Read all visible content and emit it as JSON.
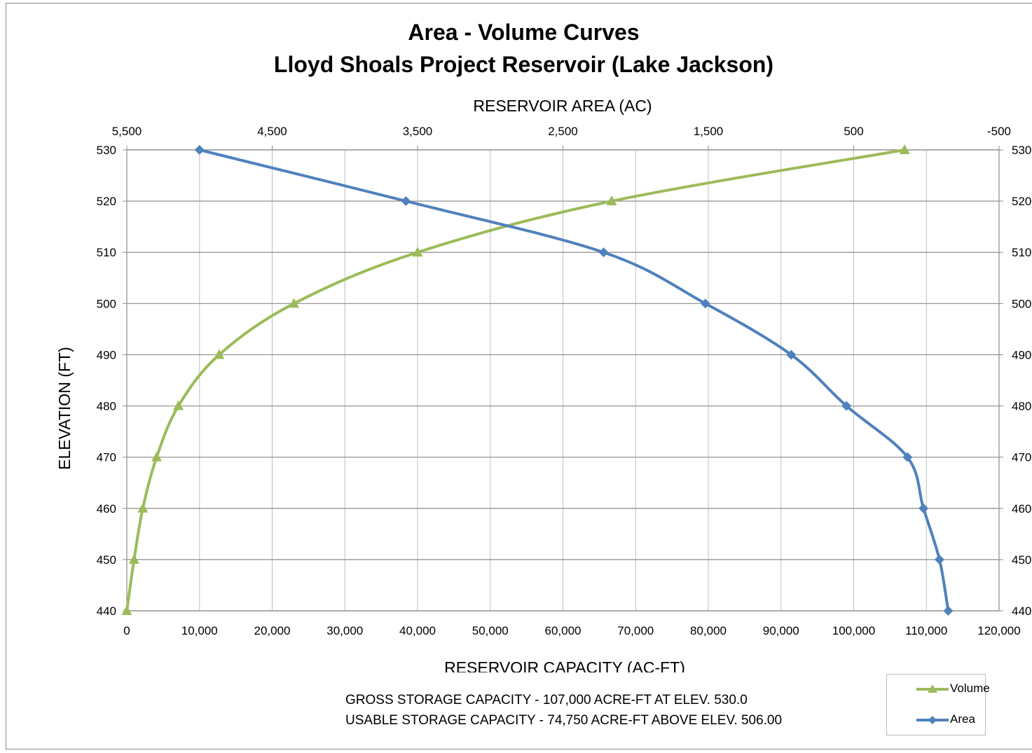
{
  "chart_data": {
    "type": "line",
    "title": "Area - Volume Curves",
    "subtitle": "Lloyd Shoals Project Reservoir (Lake Jackson)",
    "xlabel": "RESERVOIR CAPACITY (AC-FT)",
    "x2label": "RESERVOIR AREA (AC)",
    "ylabel": "ELEVATION (FT)",
    "xlim": [
      0,
      120000
    ],
    "x2lim": [
      5500,
      -500
    ],
    "ylim": [
      440,
      530
    ],
    "x_ticks": [
      0,
      10000,
      20000,
      30000,
      40000,
      50000,
      60000,
      70000,
      80000,
      90000,
      100000,
      110000,
      120000
    ],
    "x_tick_labels": [
      "0",
      "10,000",
      "20,000",
      "30,000",
      "40,000",
      "50,000",
      "60,000",
      "70,000",
      "80,000",
      "90,000",
      "100,000",
      "110,000",
      "120,000"
    ],
    "x2_ticks": [
      5500,
      4500,
      3500,
      2500,
      1500,
      500,
      -500
    ],
    "x2_tick_labels": [
      "5,500",
      "4,500",
      "3,500",
      "2,500",
      "1,500",
      "500",
      "-500"
    ],
    "y_ticks": [
      440,
      450,
      460,
      470,
      480,
      490,
      500,
      510,
      520,
      530
    ],
    "y_tick_labels": [
      "440",
      "450",
      "460",
      "470",
      "480",
      "490",
      "500",
      "510",
      "520",
      "530"
    ],
    "y2_tick_labels": [
      "440",
      "450",
      "460",
      "470",
      "480",
      "490",
      "500",
      "510",
      "520",
      "530"
    ],
    "grid": true,
    "legend_position": "bottom-right",
    "series": [
      {
        "name": "Volume",
        "axis": "bottom",
        "color": "#9bbb59",
        "marker": "triangle",
        "points": [
          [
            0,
            440
          ],
          [
            1000,
            450
          ],
          [
            2200,
            460
          ],
          [
            4100,
            470
          ],
          [
            7100,
            480
          ],
          [
            12700,
            490
          ],
          [
            23000,
            500
          ],
          [
            40000,
            510
          ],
          [
            66700,
            520
          ],
          [
            107000,
            530
          ]
        ]
      },
      {
        "name": "Area",
        "axis": "top",
        "color": "#4f81bd",
        "marker": "diamond",
        "points": [
          [
            -150,
            440
          ],
          [
            -90,
            450
          ],
          [
            20,
            460
          ],
          [
            130,
            470
          ],
          [
            550,
            480
          ],
          [
            930,
            490
          ],
          [
            1520,
            500
          ],
          [
            2220,
            510
          ],
          [
            3580,
            520
          ],
          [
            5000,
            530
          ]
        ]
      }
    ]
  },
  "notes": [
    "GROSS STORAGE CAPACITY - 107,000 ACRE-FT AT ELEV. 530.0",
    "USABLE STORAGE CAPACITY - 74,750 ACRE-FT ABOVE ELEV. 506.00"
  ]
}
